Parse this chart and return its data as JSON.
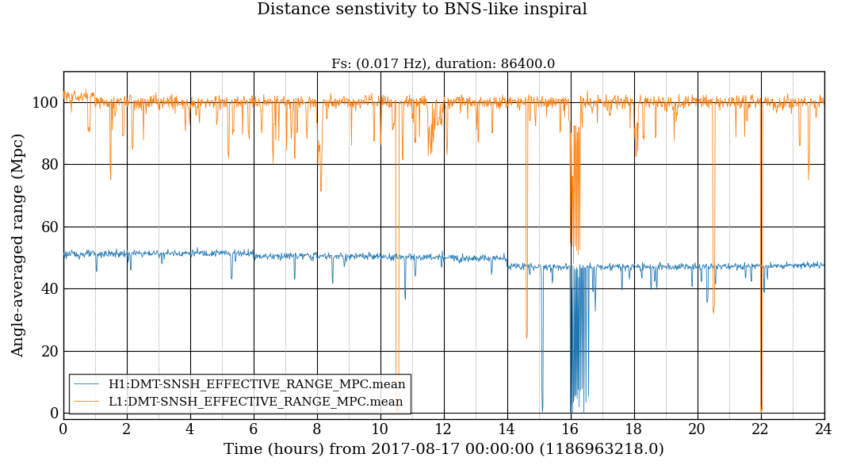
{
  "title": "Distance senstivity to BNS-like inspiral",
  "subtitle": "Fs: (0.017 Hz), duration: 86400.0",
  "xlabel": "Time (hours) from 2017-08-17 00:00:00 (1186963218.0)",
  "ylabel": "Angle-averaged range (Mpc)",
  "xlim": [
    0,
    24
  ],
  "ylim": [
    -2,
    110
  ],
  "xticks": [
    0,
    2,
    4,
    6,
    8,
    10,
    12,
    14,
    16,
    18,
    20,
    22,
    24
  ],
  "yticks": [
    0,
    20,
    40,
    60,
    80,
    100
  ],
  "h1_color": "#1f77b4",
  "l1_color": "#ff7f0e",
  "h1_label": "H1:DMT-SNSH_EFFECTIVE_RANGE_MPC.mean",
  "l1_label": "L1:DMT-SNSH_EFFECTIVE_RANGE_MPC.mean",
  "major_grid_color": "#000000",
  "minor_grid_color": "#aaaaaa",
  "bg_color": "#ffffff",
  "title_fontsize": 15,
  "subtitle_fontsize": 12,
  "label_fontsize": 14,
  "tick_fontsize": 13,
  "legend_fontsize": 11,
  "linewidth": 0.6,
  "fs": 0.017,
  "duration": 86400.0
}
